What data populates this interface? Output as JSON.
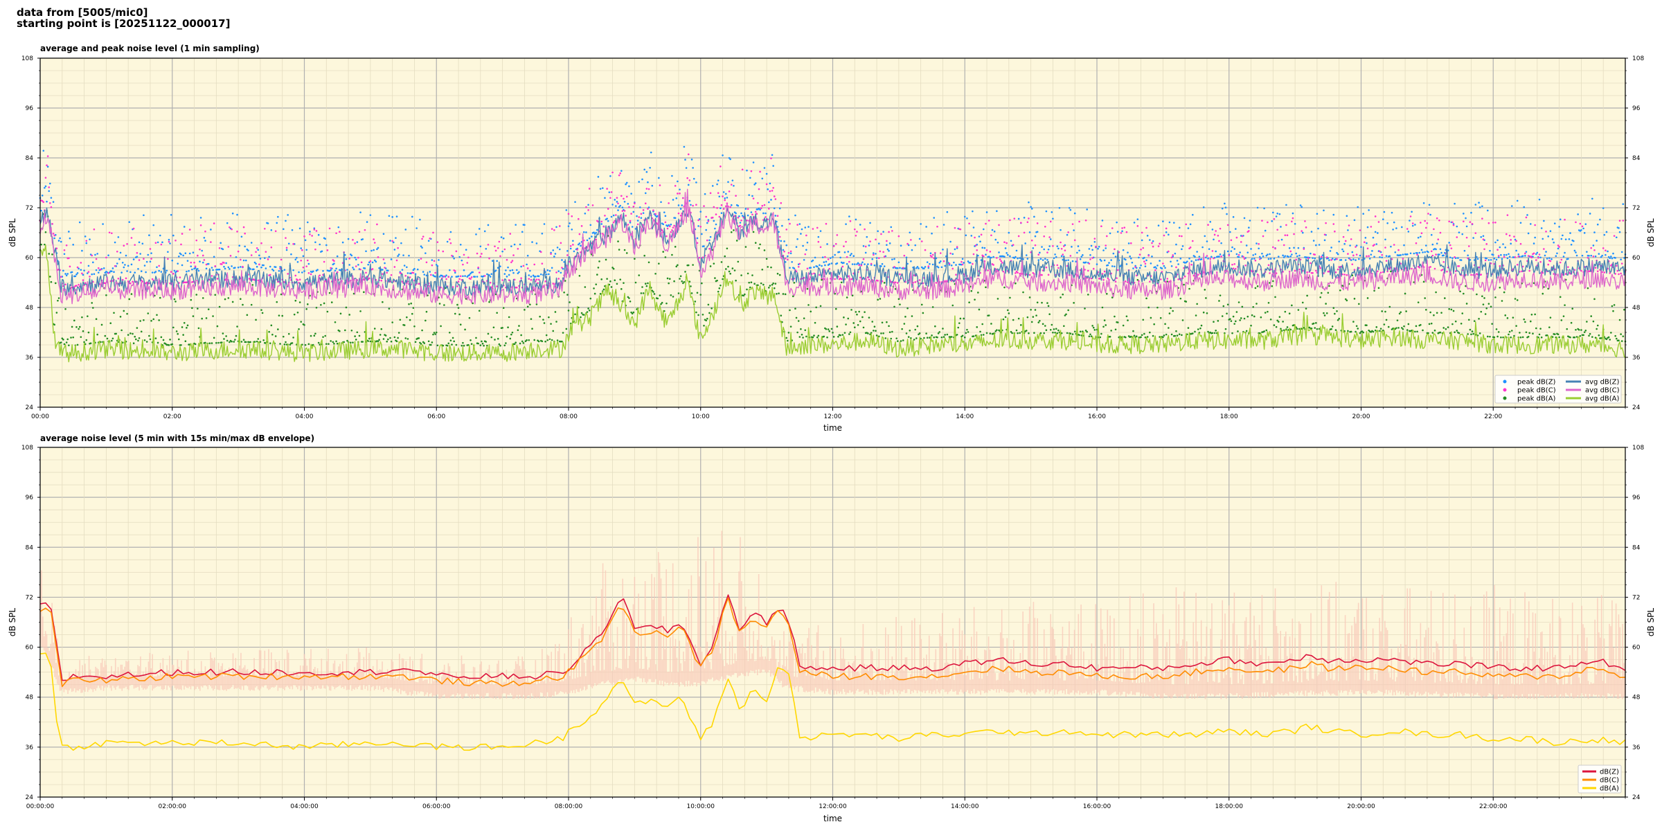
{
  "header": {
    "line1": "data from [5005/mic0]",
    "line2": "starting point is [20251122_000017]"
  },
  "colors": {
    "plot_bg": "#fdf7dc",
    "peak_z": "#1e90ff",
    "peak_c": "#ff33cc",
    "peak_a": "#228b22",
    "avg_z": "#4682b4",
    "avg_c": "#dd66cc",
    "avg_a": "#9acd32",
    "env_fill": "#f8c8b8",
    "p2_z": "#dc143c",
    "p2_c": "#ff8c00",
    "p2_a": "#ffd700"
  },
  "chart_data": [
    {
      "type": "line",
      "title": "average and peak noise level (1 min sampling)",
      "xlabel": "time",
      "ylabel": "dB SPL",
      "ylim": [
        24,
        108
      ],
      "xlim_hours": [
        0,
        24
      ],
      "yticks": [
        "24",
        "36",
        "48",
        "60",
        "72",
        "84",
        "96",
        "108"
      ],
      "xtick_labels": [
        "00:00",
        "02:00",
        "04:00",
        "06:00",
        "08:00",
        "10:00",
        "12:00",
        "14:00",
        "16:00",
        "18:00",
        "20:00",
        "22:00"
      ],
      "grid": true,
      "legend_position": "lower-right",
      "legend": [
        {
          "label": "peak dB(Z)",
          "kind": "dot",
          "color_key": "peak_z"
        },
        {
          "label": "peak dB(C)",
          "kind": "dot",
          "color_key": "peak_c"
        },
        {
          "label": "peak dB(A)",
          "kind": "dot",
          "color_key": "peak_a"
        },
        {
          "label": "avg dB(Z)",
          "kind": "line",
          "color_key": "avg_z"
        },
        {
          "label": "avg dB(C)",
          "kind": "line",
          "color_key": "avg_c"
        },
        {
          "label": "avg dB(A)",
          "kind": "line",
          "color_key": "avg_a"
        }
      ],
      "series": [
        {
          "name": "avg dB(Z)",
          "x": [
            0,
            0.1,
            0.2,
            0.3,
            0.5,
            1,
            2,
            3,
            4,
            5,
            5.5,
            6,
            7,
            7.5,
            7.9,
            8,
            8.3,
            8.6,
            8.8,
            9,
            9.2,
            9.5,
            9.8,
            10,
            10.2,
            10.4,
            10.6,
            10.8,
            11,
            11.1,
            11.3,
            11.6,
            12,
            12.5,
            13,
            13.5,
            14,
            14.5,
            15,
            15.5,
            16,
            16.5,
            17,
            17.5,
            18,
            18.5,
            19,
            19.5,
            20,
            20.5,
            21,
            21.5,
            22,
            22.5,
            23,
            23.5,
            24
          ],
          "y": [
            68,
            71,
            64,
            53,
            53,
            54,
            54,
            55,
            54,
            55,
            54,
            53,
            53,
            53,
            54,
            58,
            62,
            66,
            70,
            64,
            70,
            64,
            72,
            59,
            63,
            72,
            66,
            69,
            68,
            70,
            55,
            55,
            56,
            56,
            55,
            55,
            56,
            58,
            57,
            57,
            56,
            55,
            55,
            57,
            58,
            57,
            58,
            57,
            57,
            58,
            59,
            57,
            57,
            58,
            57,
            58,
            57
          ]
        },
        {
          "name": "avg dB(C)",
          "x": [
            0,
            0.1,
            0.2,
            0.3,
            0.5,
            1,
            2,
            3,
            4,
            5,
            5.5,
            6,
            7,
            7.5,
            7.9,
            8,
            8.3,
            8.6,
            8.8,
            9,
            9.2,
            9.5,
            9.8,
            10,
            10.2,
            10.4,
            10.6,
            10.8,
            11,
            11.1,
            11.3,
            11.6,
            12,
            12.5,
            13,
            13.5,
            14,
            14.5,
            15,
            15.5,
            16,
            16.5,
            17,
            17.5,
            18,
            18.5,
            19,
            19.5,
            20,
            20.5,
            21,
            21.5,
            22,
            22.5,
            23,
            23.5,
            24
          ],
          "y": [
            67,
            70,
            63,
            51,
            51,
            52,
            52,
            53,
            52,
            53,
            52,
            51,
            51,
            51,
            52,
            57,
            61,
            65,
            69,
            62,
            69,
            63,
            71,
            57,
            62,
            71,
            65,
            68,
            67,
            69,
            53,
            53,
            53,
            53,
            52,
            52,
            53,
            55,
            54,
            54,
            53,
            52,
            52,
            54,
            55,
            54,
            55,
            54,
            54,
            55,
            56,
            54,
            54,
            55,
            54,
            55,
            54
          ]
        },
        {
          "name": "avg dB(A)",
          "x": [
            0,
            0.1,
            0.2,
            0.3,
            0.5,
            1,
            2,
            3,
            4,
            5,
            5.5,
            6,
            7,
            7.5,
            7.9,
            8,
            8.3,
            8.6,
            8.8,
            9,
            9.2,
            9.5,
            9.8,
            10,
            10.2,
            10.4,
            10.6,
            10.8,
            11,
            11.1,
            11.3,
            11.6,
            12,
            12.5,
            13,
            13.5,
            14,
            14.5,
            15,
            15.5,
            16,
            16.5,
            17,
            17.5,
            18,
            18.5,
            19,
            19.5,
            20,
            20.5,
            21,
            21.5,
            22,
            22.5,
            23,
            23.5,
            24
          ],
          "y": [
            60,
            62,
            42,
            37,
            37,
            38,
            37,
            38,
            37,
            38,
            38,
            37,
            37,
            38,
            38,
            42,
            45,
            52,
            48,
            44,
            52,
            44,
            54,
            40,
            47,
            56,
            48,
            52,
            50,
            52,
            38,
            39,
            39,
            40,
            38,
            39,
            39,
            40,
            40,
            40,
            39,
            39,
            39,
            40,
            40,
            40,
            41,
            41,
            40,
            41,
            40,
            40,
            39,
            39,
            39,
            39,
            38
          ]
        },
        {
          "name": "peak dB(Z)",
          "kind": "scatter",
          "level_offset": 4
        },
        {
          "name": "peak dB(C)",
          "kind": "scatter",
          "level_offset": 3
        },
        {
          "name": "peak dB(A)",
          "kind": "scatter",
          "level_offset": 3
        }
      ]
    },
    {
      "type": "area",
      "title": "average noise level (5 min with 15s min/max dB envelope)",
      "xlabel": "time",
      "ylabel": "dB SPL",
      "ylim": [
        24,
        108
      ],
      "xlim_hours": [
        0,
        24
      ],
      "yticks": [
        "24",
        "36",
        "48",
        "60",
        "72",
        "84",
        "96",
        "108"
      ],
      "xtick_labels": [
        "00:00:00",
        "02:00:00",
        "04:00:00",
        "06:00:00",
        "08:00:00",
        "10:00:00",
        "12:00:00",
        "14:00:00",
        "16:00:00",
        "18:00:00",
        "20:00:00",
        "22:00:00"
      ],
      "grid": true,
      "legend_position": "lower-right",
      "legend": [
        {
          "label": "dB(Z)",
          "color_key": "p2_z"
        },
        {
          "label": "dB(C)",
          "color_key": "p2_c"
        },
        {
          "label": "dB(A)",
          "color_key": "p2_a"
        }
      ],
      "envelope": {
        "x": [
          0,
          0.2,
          0.3,
          1,
          3,
          5,
          6,
          7.5,
          8,
          8.5,
          9,
          9.5,
          10,
          10.5,
          11,
          11.3,
          12,
          14,
          16,
          17,
          18,
          20,
          22,
          24
        ],
        "min": [
          62,
          55,
          50,
          51,
          51,
          51,
          49,
          49,
          50,
          52,
          53,
          52,
          52,
          54,
          55,
          51,
          50,
          50,
          50,
          49,
          49,
          50,
          49,
          49
        ],
        "max": [
          80,
          72,
          58,
          58,
          60,
          60,
          58,
          58,
          68,
          80,
          85,
          88,
          92,
          88,
          85,
          65,
          66,
          70,
          72,
          74,
          76,
          76,
          75,
          72
        ]
      },
      "series": [
        {
          "name": "dB(Z)",
          "x": [
            0,
            0.1,
            0.2,
            0.25,
            0.3,
            0.5,
            1,
            2,
            3,
            4,
            5,
            5.5,
            6,
            7,
            7.5,
            7.9,
            8,
            8.2,
            8.5,
            8.8,
            9,
            9.2,
            9.5,
            9.7,
            10,
            10.2,
            10.4,
            10.6,
            10.8,
            11,
            11.2,
            11.35,
            11.5,
            12,
            12.5,
            13,
            13.5,
            14,
            14.5,
            15,
            15.5,
            16,
            16.5,
            17,
            17.5,
            18,
            18.5,
            19,
            19.2,
            19.5,
            20,
            20.5,
            21,
            21.5,
            22,
            22.5,
            23,
            23.5,
            24
          ],
          "y": [
            70,
            70,
            68,
            61,
            52,
            53,
            53,
            54,
            54,
            54,
            54,
            55,
            53,
            53,
            53,
            54,
            55,
            58,
            63,
            73,
            64,
            65,
            64,
            66,
            56,
            61,
            73,
            64,
            68,
            66,
            70,
            66,
            55,
            55,
            55,
            55,
            55,
            56,
            57,
            56,
            56,
            55,
            55,
            55,
            56,
            57,
            56,
            57,
            58,
            57,
            57,
            57,
            56,
            56,
            55,
            55,
            55,
            57,
            55
          ]
        },
        {
          "name": "dB(C)",
          "x": [
            0,
            0.1,
            0.2,
            0.25,
            0.3,
            0.5,
            1,
            2,
            3,
            4,
            5,
            5.5,
            6,
            7,
            7.5,
            7.9,
            8,
            8.2,
            8.5,
            8.8,
            9,
            9.2,
            9.5,
            9.7,
            10,
            10.2,
            10.4,
            10.6,
            10.8,
            11,
            11.2,
            11.35,
            11.5,
            12,
            12.5,
            13,
            13.5,
            14,
            14.5,
            15,
            15.5,
            16,
            16.5,
            17,
            17.5,
            18,
            18.5,
            19,
            19.2,
            19.5,
            20,
            20.5,
            21,
            21.5,
            22,
            22.5,
            23,
            23.5,
            24
          ],
          "y": [
            69,
            69,
            67,
            60,
            51,
            52,
            52,
            53,
            53,
            53,
            53,
            53,
            52,
            51,
            52,
            53,
            54,
            57,
            62,
            71,
            63,
            64,
            63,
            65,
            55,
            60,
            72,
            63,
            67,
            65,
            69,
            65,
            54,
            53,
            53,
            53,
            53,
            54,
            55,
            54,
            54,
            53,
            53,
            53,
            54,
            55,
            54,
            55,
            56,
            55,
            55,
            55,
            54,
            54,
            53,
            53,
            53,
            55,
            53
          ]
        },
        {
          "name": "dB(A)",
          "x": [
            0,
            0.1,
            0.2,
            0.25,
            0.3,
            0.5,
            1,
            2,
            3,
            4,
            5,
            5.5,
            6,
            7,
            7.5,
            7.9,
            8,
            8.2,
            8.5,
            8.8,
            9,
            9.2,
            9.5,
            9.7,
            10,
            10.2,
            10.4,
            10.6,
            10.8,
            11,
            11.2,
            11.35,
            11.5,
            12,
            12.5,
            13,
            13.5,
            14,
            14.5,
            15,
            15.5,
            16,
            16.5,
            17,
            17.5,
            18,
            18.5,
            19,
            19.2,
            19.5,
            20,
            20.5,
            21,
            21.5,
            22,
            22.5,
            23,
            23.5,
            24
          ],
          "y": [
            59,
            58,
            54,
            42,
            36,
            36,
            37,
            37,
            37,
            36,
            37,
            37,
            36,
            36,
            37,
            38,
            40,
            42,
            46,
            53,
            46,
            47,
            46,
            48,
            38,
            42,
            53,
            45,
            50,
            47,
            56,
            54,
            38,
            39,
            39,
            38,
            39,
            39,
            40,
            39,
            40,
            39,
            39,
            39,
            39,
            40,
            39,
            40,
            41,
            40,
            39,
            40,
            39,
            39,
            38,
            38,
            37,
            38,
            37
          ]
        }
      ]
    }
  ]
}
